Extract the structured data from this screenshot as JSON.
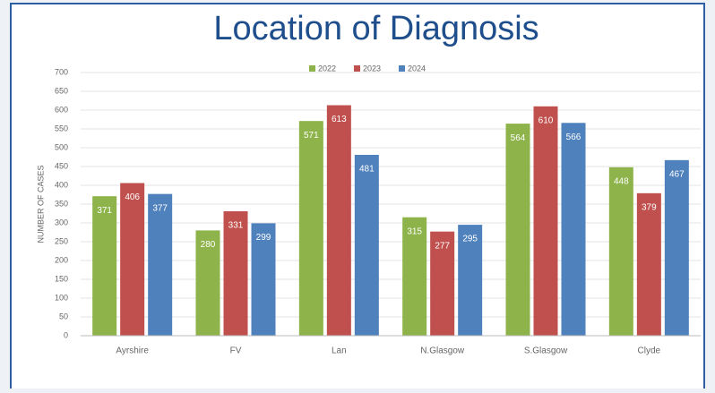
{
  "chart_data": {
    "type": "bar",
    "title": "Location of Diagnosis",
    "y_label": "NUMBER OF CASES",
    "categories": [
      "Ayrshire",
      "FV",
      "Lan",
      "N.Glasgow",
      "S.Glasgow",
      "Clyde"
    ],
    "series": [
      {
        "name": "2022",
        "color": "#8db34a",
        "values": [
          371,
          280,
          571,
          315,
          564,
          448
        ]
      },
      {
        "name": "2023",
        "color": "#c0504d",
        "values": [
          406,
          331,
          613,
          277,
          610,
          379
        ]
      },
      {
        "name": "2024",
        "color": "#4f81bd",
        "values": [
          377,
          299,
          481,
          295,
          566,
          467
        ]
      }
    ],
    "ylim": [
      0,
      700
    ],
    "yticks": [
      0,
      50,
      100,
      150,
      200,
      250,
      300,
      350,
      400,
      450,
      500,
      550,
      600,
      650,
      700
    ],
    "grid": true,
    "legend": "top"
  }
}
